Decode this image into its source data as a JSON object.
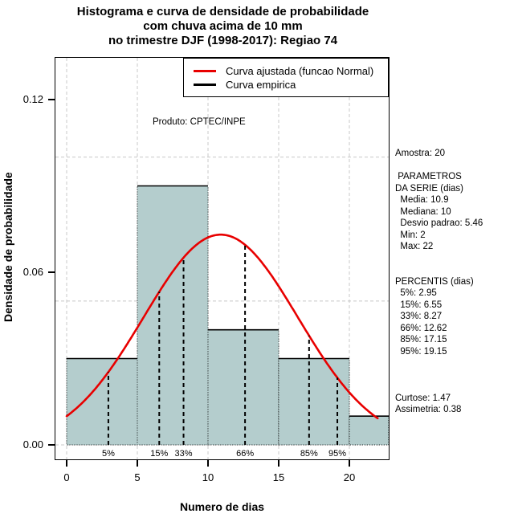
{
  "chart_data": {
    "type": "histogram_with_density",
    "title_lines": [
      "Histograma e curva de densidade de probabilidade",
      "com chuva acima de 10 mm",
      "no trimestre DJF (1998-2017): Regiao 74"
    ],
    "xlabel": "Numero de dias",
    "ylabel": "Densidade de probabilidade",
    "watermark": "Produto: CPTEC/INPE",
    "legend": [
      {
        "label": "Curva ajustada (funcao Normal)",
        "color": "#e80000"
      },
      {
        "label": "Curva empirica",
        "color": "#000000"
      }
    ],
    "bin_edges": [
      0,
      5,
      10,
      15,
      20,
      25
    ],
    "bin_densities": [
      0.03,
      0.09,
      0.04,
      0.03,
      0.01
    ],
    "normal_fit": {
      "mean": 10.9,
      "sd": 5.46
    },
    "percentiles": [
      {
        "label": "5%",
        "value": 2.95
      },
      {
        "label": "15%",
        "value": 6.55
      },
      {
        "label": "33%",
        "value": 8.27
      },
      {
        "label": "66%",
        "value": 12.62
      },
      {
        "label": "85%",
        "value": 17.15
      },
      {
        "label": "95%",
        "value": 19.15
      }
    ],
    "x_ticks": [
      0,
      5,
      10,
      15,
      20
    ],
    "y_ticks": [
      {
        "label": "0.00",
        "value": 0.0
      },
      {
        "label": "0.06",
        "value": 0.06
      },
      {
        "label": "0.12",
        "value": 0.12
      }
    ],
    "grid": {
      "h_values": [
        0,
        0.05,
        0.1
      ],
      "v_values": [
        0,
        5,
        10,
        15,
        20
      ],
      "style": "dashed"
    },
    "xlim": [
      0,
      22.8
    ],
    "ylim": [
      0,
      0.135
    ],
    "bar_color": "#b4cdcd",
    "bar_border_color": "#000000",
    "curve_color": "#e80000",
    "grid_color": "#c8c8c8"
  },
  "stats_panel": {
    "lines": [
      "Amostra: 20",
      "",
      " PARAMETROS",
      "DA SERIE (dias)",
      "  Media: 10.9",
      "  Mediana: 10",
      "  Desvio padrao: 5.46",
      "  Min: 2",
      "  Max: 22",
      "",
      "",
      "PERCENTIS (dias)",
      "  5%: 2.95",
      "  15%: 6.55",
      "  33%: 8.27",
      "  66%: 12.62",
      "  85%: 17.15",
      "  95%: 19.15",
      "",
      "",
      "",
      "Curtose: 1.47",
      "Assimetria: 0.38"
    ]
  }
}
